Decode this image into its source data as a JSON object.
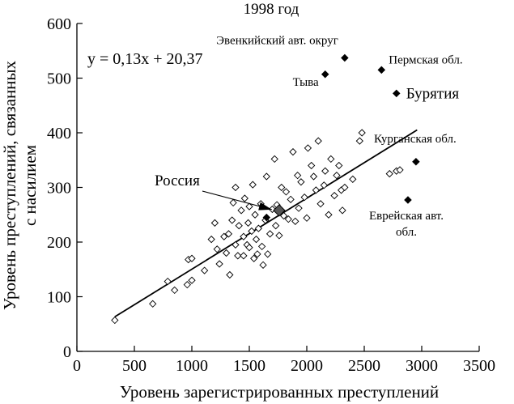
{
  "chart_data": {
    "type": "scatter",
    "title": "1998 год",
    "xlabel": "Уровень зарегистрированных преступлений",
    "ylabel": "Уровень преступлений, связанных с насилием",
    "ylabel_lines": [
      "Уровень преступлений, связанных",
      "с насилием"
    ],
    "xlim": [
      0,
      3500
    ],
    "ylim": [
      0,
      600
    ],
    "x_ticks": [
      "0",
      "500",
      "1000",
      "1500",
      "2000",
      "2500",
      "3000",
      "3500"
    ],
    "y_ticks": [
      "0",
      "100",
      "200",
      "300",
      "400",
      "500",
      "600"
    ],
    "equation": "y = 0,13x + 20,37",
    "trendline": {
      "slope": 0.13,
      "intercept": 20.37,
      "x_range": [
        330,
        2960
      ]
    },
    "russia": {
      "label": "Россия",
      "x": 1760,
      "y": 258
    },
    "highlighted": [
      {
        "label": "Эвенкийский авт. округ",
        "x": 2330,
        "y": 537
      },
      {
        "label": "Пермская обл.",
        "x": 2650,
        "y": 515
      },
      {
        "label": "Тыва",
        "x": 2160,
        "y": 507
      },
      {
        "label": "Бурятия",
        "x": 2780,
        "y": 472
      },
      {
        "label": "Курганская обл.",
        "x": 2950,
        "y": 347
      },
      {
        "label": "Еврейская авт. обл.",
        "label_lines": [
          "Еврейская авт.",
          "обл."
        ],
        "x": 2880,
        "y": 277
      },
      {
        "label": "",
        "x": 1650,
        "y": 245
      }
    ],
    "points": [
      {
        "x": 330,
        "y": 57
      },
      {
        "x": 660,
        "y": 87
      },
      {
        "x": 790,
        "y": 128
      },
      {
        "x": 850,
        "y": 112
      },
      {
        "x": 960,
        "y": 122
      },
      {
        "x": 970,
        "y": 168
      },
      {
        "x": 1000,
        "y": 170
      },
      {
        "x": 1000,
        "y": 130
      },
      {
        "x": 1110,
        "y": 148
      },
      {
        "x": 1170,
        "y": 205
      },
      {
        "x": 1200,
        "y": 235
      },
      {
        "x": 1220,
        "y": 187
      },
      {
        "x": 1240,
        "y": 160
      },
      {
        "x": 1280,
        "y": 210
      },
      {
        "x": 1300,
        "y": 180
      },
      {
        "x": 1320,
        "y": 215
      },
      {
        "x": 1330,
        "y": 140
      },
      {
        "x": 1350,
        "y": 240
      },
      {
        "x": 1360,
        "y": 272
      },
      {
        "x": 1380,
        "y": 300
      },
      {
        "x": 1380,
        "y": 195
      },
      {
        "x": 1400,
        "y": 175
      },
      {
        "x": 1410,
        "y": 230
      },
      {
        "x": 1430,
        "y": 258
      },
      {
        "x": 1450,
        "y": 210
      },
      {
        "x": 1450,
        "y": 175
      },
      {
        "x": 1460,
        "y": 280
      },
      {
        "x": 1480,
        "y": 195
      },
      {
        "x": 1490,
        "y": 235
      },
      {
        "x": 1500,
        "y": 265
      },
      {
        "x": 1500,
        "y": 190
      },
      {
        "x": 1520,
        "y": 220
      },
      {
        "x": 1530,
        "y": 305
      },
      {
        "x": 1540,
        "y": 170
      },
      {
        "x": 1550,
        "y": 250
      },
      {
        "x": 1560,
        "y": 205
      },
      {
        "x": 1570,
        "y": 178
      },
      {
        "x": 1580,
        "y": 225
      },
      {
        "x": 1600,
        "y": 270
      },
      {
        "x": 1610,
        "y": 192
      },
      {
        "x": 1620,
        "y": 158
      },
      {
        "x": 1640,
        "y": 240
      },
      {
        "x": 1650,
        "y": 320
      },
      {
        "x": 1660,
        "y": 178
      },
      {
        "x": 1680,
        "y": 215
      },
      {
        "x": 1700,
        "y": 260
      },
      {
        "x": 1720,
        "y": 352
      },
      {
        "x": 1730,
        "y": 230
      },
      {
        "x": 1740,
        "y": 268
      },
      {
        "x": 1760,
        "y": 212
      },
      {
        "x": 1780,
        "y": 300
      },
      {
        "x": 1800,
        "y": 248
      },
      {
        "x": 1820,
        "y": 292
      },
      {
        "x": 1840,
        "y": 242
      },
      {
        "x": 1860,
        "y": 278
      },
      {
        "x": 1880,
        "y": 365
      },
      {
        "x": 1900,
        "y": 238
      },
      {
        "x": 1920,
        "y": 322
      },
      {
        "x": 1930,
        "y": 262
      },
      {
        "x": 1950,
        "y": 310
      },
      {
        "x": 1980,
        "y": 282
      },
      {
        "x": 2000,
        "y": 244
      },
      {
        "x": 2010,
        "y": 372
      },
      {
        "x": 2040,
        "y": 340
      },
      {
        "x": 2060,
        "y": 320
      },
      {
        "x": 2080,
        "y": 295
      },
      {
        "x": 2100,
        "y": 385
      },
      {
        "x": 2120,
        "y": 270
      },
      {
        "x": 2150,
        "y": 304
      },
      {
        "x": 2160,
        "y": 330
      },
      {
        "x": 2190,
        "y": 250
      },
      {
        "x": 2210,
        "y": 352
      },
      {
        "x": 2240,
        "y": 285
      },
      {
        "x": 2260,
        "y": 322
      },
      {
        "x": 2280,
        "y": 340
      },
      {
        "x": 2300,
        "y": 295
      },
      {
        "x": 2310,
        "y": 258
      },
      {
        "x": 2330,
        "y": 300
      },
      {
        "x": 2400,
        "y": 315
      },
      {
        "x": 2460,
        "y": 385
      },
      {
        "x": 2480,
        "y": 400
      },
      {
        "x": 2720,
        "y": 325
      },
      {
        "x": 2780,
        "y": 330
      },
      {
        "x": 2810,
        "y": 332
      }
    ]
  }
}
